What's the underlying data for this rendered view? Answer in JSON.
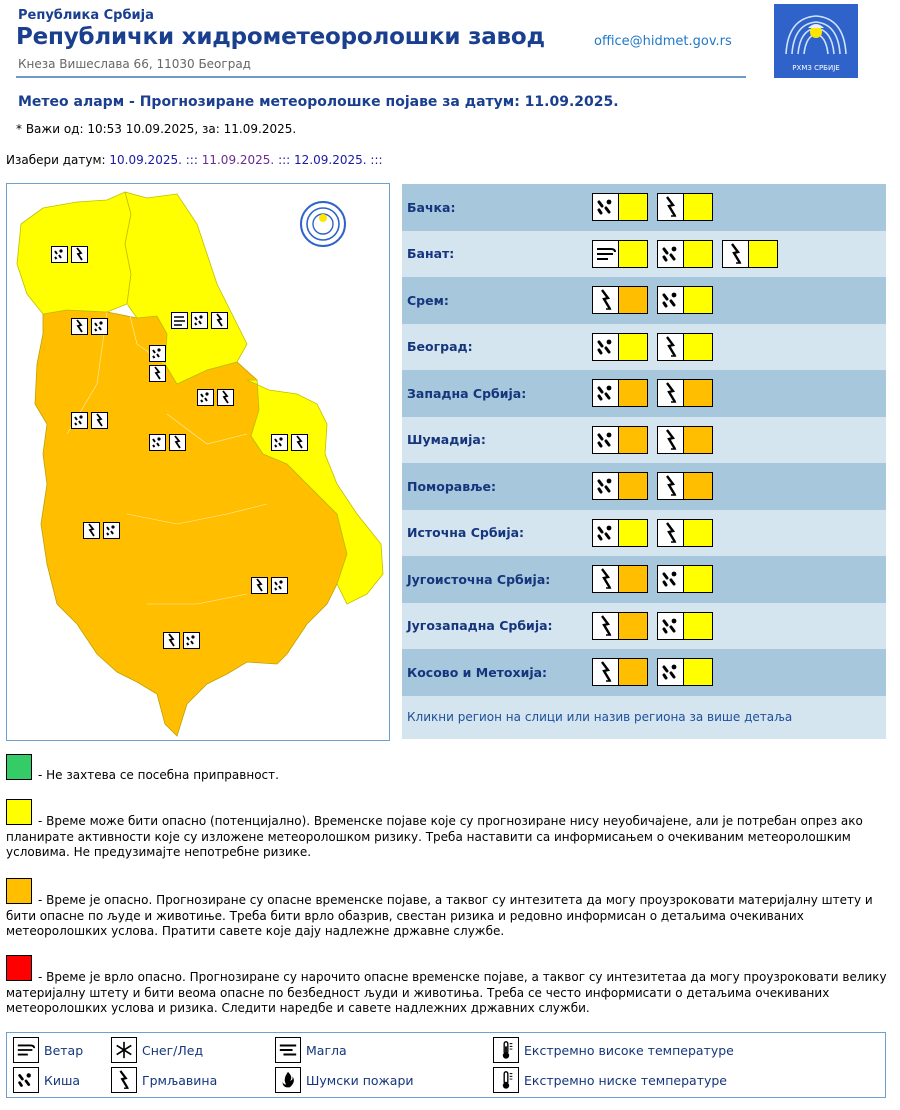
{
  "header": {
    "country": "Република Србија",
    "title": "Републички хидрометеоролошки завод",
    "address": "Кнеза Вишеслава 66, 11030 Београд",
    "email": "office@hidmet.gov.rs",
    "logo_text": "РХМЗ СРБИЈЕ"
  },
  "alarm": {
    "title": "Метео аларм - Прогнозиране метеоролошке појаве за датум:  11.09.2025.",
    "valid": "* Важи од: 10:53 10.09.2025, за: 11.09.2025."
  },
  "date_select": {
    "label": "Изабери датум:",
    "dates": [
      "10.09.2025.",
      "11.09.2025.",
      "12.09.2025."
    ],
    "separator": ":::"
  },
  "colors": {
    "yellow": "#ffff00",
    "orange": "#ffbf00",
    "red": "#ff0000",
    "green": "#33cc66",
    "header_blue": "#1b3f8f"
  },
  "regions": [
    {
      "name": "Бачка:",
      "warnings": [
        {
          "icon": "rain-icon",
          "level": "yellow"
        },
        {
          "icon": "thunder-icon",
          "level": "yellow"
        }
      ]
    },
    {
      "name": "Банат:",
      "warnings": [
        {
          "icon": "wind-icon",
          "level": "yellow"
        },
        {
          "icon": "rain-icon",
          "level": "yellow"
        },
        {
          "icon": "thunder-icon",
          "level": "yellow"
        }
      ]
    },
    {
      "name": "Срем:",
      "warnings": [
        {
          "icon": "thunder-icon",
          "level": "orange"
        },
        {
          "icon": "rain-icon",
          "level": "yellow"
        }
      ]
    },
    {
      "name": "Београд:",
      "warnings": [
        {
          "icon": "rain-icon",
          "level": "yellow"
        },
        {
          "icon": "thunder-icon",
          "level": "yellow"
        }
      ]
    },
    {
      "name": "Западна Србија:",
      "warnings": [
        {
          "icon": "rain-icon",
          "level": "orange"
        },
        {
          "icon": "thunder-icon",
          "level": "orange"
        }
      ]
    },
    {
      "name": "Шумадија:",
      "warnings": [
        {
          "icon": "rain-icon",
          "level": "orange"
        },
        {
          "icon": "thunder-icon",
          "level": "orange"
        }
      ]
    },
    {
      "name": "Поморавље:",
      "warnings": [
        {
          "icon": "rain-icon",
          "level": "orange"
        },
        {
          "icon": "thunder-icon",
          "level": "orange"
        }
      ]
    },
    {
      "name": "Источна Србија:",
      "warnings": [
        {
          "icon": "rain-icon",
          "level": "yellow"
        },
        {
          "icon": "thunder-icon",
          "level": "yellow"
        }
      ]
    },
    {
      "name": "Југоисточна Србија:",
      "warnings": [
        {
          "icon": "thunder-icon",
          "level": "orange"
        },
        {
          "icon": "rain-icon",
          "level": "yellow"
        }
      ]
    },
    {
      "name": "Југозападна Србија:",
      "warnings": [
        {
          "icon": "thunder-icon",
          "level": "orange"
        },
        {
          "icon": "rain-icon",
          "level": "yellow"
        }
      ]
    },
    {
      "name": "Косово и Метохија:",
      "warnings": [
        {
          "icon": "thunder-icon",
          "level": "orange"
        },
        {
          "icon": "rain-icon",
          "level": "yellow"
        }
      ]
    }
  ],
  "region_hint": "Кликни регион на слици или назив региона за више детаља",
  "legend": {
    "green": "- Не захтева се посебна приправност.",
    "yellow": "- Време може бити опасно (потенцијално). Временске појаве које су прогнозиране нису неуобичајене, али је потребан опрез ако планирате активности које су изложене метеоролошком ризику. Треба наставити са информисањем о очекиваним метеоролошким условима. Не предузимајте непотребне ризике.",
    "orange": "- Време је опасно. Прогнозиране су опасне временске појаве, а таквог су интезитета да могу проузроковати материјалну штету и бити опасне по људе и животиње. Треба бити врло обазрив, свестан ризика и редовно информисан о детаљима очекиваних метеоролошких услова. Пратити савете које дају надлежне државне службе.",
    "red": "- Време је врло опасно. Прогнозиране су нарочито опасне временске појаве, а таквог су интезитетаа да могу проузроковати велику материјалну штету и бити веома опасне по безбедност људи и животиња. Треба се често информисати о детаљима очекиваних метеоролошких услова и ризика. Следити наредбе и савете надлежних државних служби."
  },
  "icon_legend": [
    {
      "icon": "wind-icon",
      "label": "Ветар"
    },
    {
      "icon": "snow-ice-icon",
      "label": "Снег/Лед"
    },
    {
      "icon": "fog-icon",
      "label": "Магла"
    },
    {
      "icon": "high-temp-icon",
      "label": "Екстремно високе температуре"
    },
    {
      "icon": "rain-icon",
      "label": "Киша"
    },
    {
      "icon": "thunder-icon",
      "label": "Грмљавина"
    },
    {
      "icon": "forest-fire-icon",
      "label": "Шумски пожари"
    },
    {
      "icon": "low-temp-icon",
      "label": "Екстремно ниске температуре"
    }
  ]
}
